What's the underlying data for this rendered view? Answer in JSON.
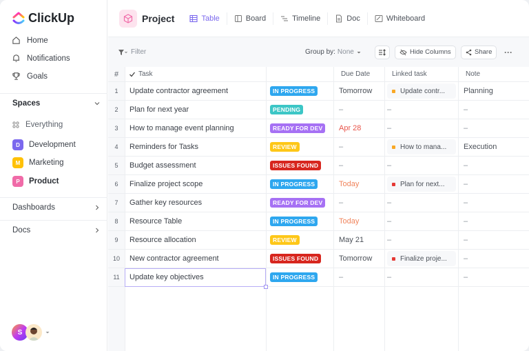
{
  "app": {
    "name": "ClickUp"
  },
  "sidebar": {
    "nav": [
      {
        "label": "Home",
        "icon": "home-icon"
      },
      {
        "label": "Notifications",
        "icon": "bell-icon"
      },
      {
        "label": "Goals",
        "icon": "trophy-icon"
      }
    ],
    "spaces_label": "Spaces",
    "everything_label": "Everything",
    "spaces": [
      {
        "label": "Development",
        "initial": "D",
        "color": "#7b68ee"
      },
      {
        "label": "Marketing",
        "initial": "M",
        "color": "#ffc107"
      },
      {
        "label": "Product",
        "initial": "P",
        "color": "#f06ba8",
        "active": true
      }
    ],
    "dashboards_label": "Dashboards",
    "docs_label": "Docs",
    "user_initial": "S"
  },
  "header": {
    "title": "Project",
    "tabs": [
      {
        "label": "Table",
        "icon": "table-icon",
        "active": true
      },
      {
        "label": "Board",
        "icon": "board-icon"
      },
      {
        "label": "Timeline",
        "icon": "timeline-icon"
      },
      {
        "label": "Doc",
        "icon": "doc-icon"
      },
      {
        "label": "Whiteboard",
        "icon": "whiteboard-icon"
      }
    ]
  },
  "toolbar": {
    "filter": "Filter",
    "group_by_label": "Group by:",
    "group_by_value": "None",
    "hide_columns": "Hide Columns",
    "share": "Share",
    "more": "···"
  },
  "table": {
    "columns": {
      "num": "#",
      "task": "Task",
      "status": "",
      "due": "Due Date",
      "linked": "Linked task",
      "note": "Note"
    },
    "status_colors": {
      "IN PROGRESS": "#2ea7ef",
      "PENDING": "#3cc6c6",
      "READY FOR DEV": "#a671f4",
      "REVIEW": "#fec718",
      "ISSUES FOUND": "#d7261e"
    },
    "due_accent": {
      "red": "#e8544a",
      "orange": "#f0845c"
    },
    "rows": [
      {
        "num": "1",
        "task": "Update contractor agreement",
        "status": "IN PROGRESS",
        "due": "Tomorrow",
        "due_color": "",
        "linked": "Update contr...",
        "linked_color": "#f9a825",
        "note": "Planning"
      },
      {
        "num": "2",
        "task": "Plan for next year",
        "status": "PENDING",
        "due": "–",
        "due_color": "",
        "linked": "–",
        "linked_color": "",
        "note": "–"
      },
      {
        "num": "3",
        "task": "How to manage event planning",
        "status": "READY FOR DEV",
        "due": "Apr 28",
        "due_color": "#e8544a",
        "linked": "–",
        "linked_color": "",
        "note": "–"
      },
      {
        "num": "4",
        "task": "Reminders for Tasks",
        "status": "REVIEW",
        "due": "–",
        "due_color": "",
        "linked": "How to mana...",
        "linked_color": "#f9a825",
        "note": "Execution"
      },
      {
        "num": "5",
        "task": "Budget assessment",
        "status": "ISSUES FOUND",
        "due": "–",
        "due_color": "",
        "linked": "–",
        "linked_color": "",
        "note": "–"
      },
      {
        "num": "6",
        "task": "Finalize project scope",
        "status": "IN PROGRESS",
        "due": "Today",
        "due_color": "#f0845c",
        "linked": "Plan for next...",
        "linked_color": "#e53935",
        "note": "–"
      },
      {
        "num": "7",
        "task": "Gather key resources",
        "status": "READY FOR DEV",
        "due": "–",
        "due_color": "",
        "linked": "–",
        "linked_color": "",
        "note": "–"
      },
      {
        "num": "8",
        "task": "Resource Table",
        "status": "IN PROGRESS",
        "due": "Today",
        "due_color": "#f0845c",
        "linked": "–",
        "linked_color": "",
        "note": "–"
      },
      {
        "num": "9",
        "task": "Resource allocation",
        "status": "REVIEW",
        "due": "May 21",
        "due_color": "",
        "linked": "–",
        "linked_color": "",
        "note": "–"
      },
      {
        "num": "10",
        "task": "New contractor agreement",
        "status": "ISSUES FOUND",
        "due": "Tomorrow",
        "due_color": "",
        "linked": "Finalize proje...",
        "linked_color": "#e53935",
        "note": "–"
      },
      {
        "num": "11",
        "task": "Update key objectives",
        "status": "IN PROGRESS",
        "due": "–",
        "due_color": "",
        "linked": "–",
        "linked_color": "",
        "note": "–",
        "selected": true
      }
    ]
  }
}
